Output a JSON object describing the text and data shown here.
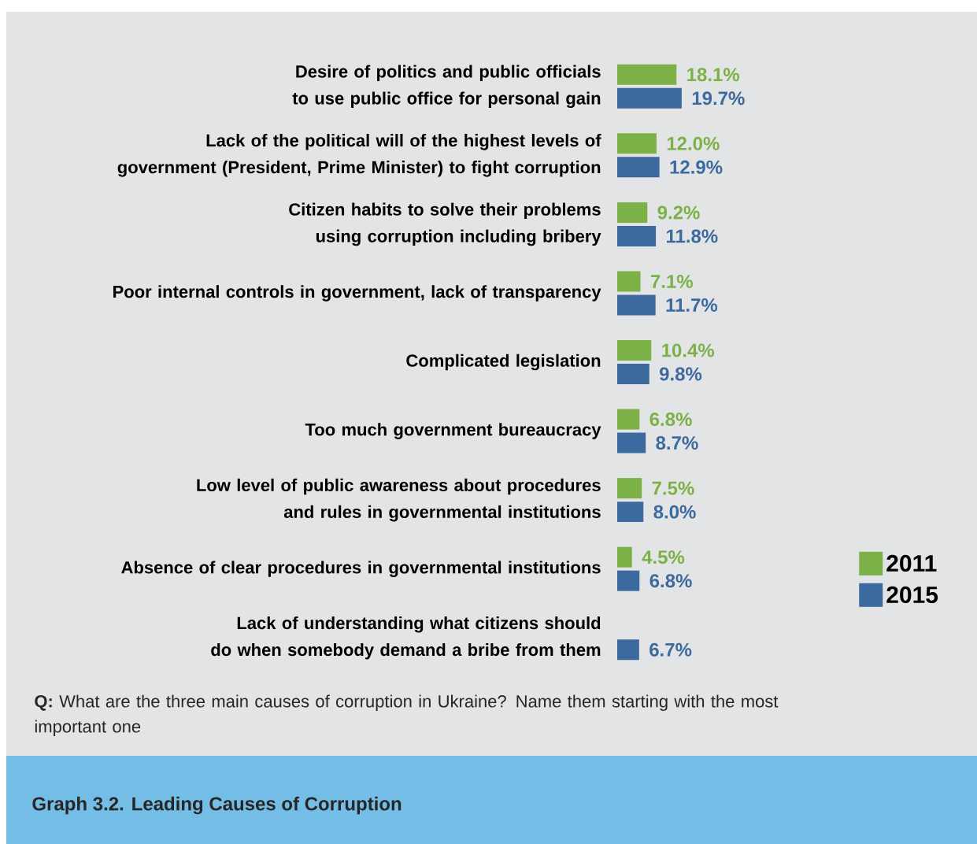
{
  "chart_data": {
    "type": "bar",
    "orientation": "horizontal",
    "title": "Graph 3.2. Leading Causes of Corruption",
    "categories": [
      "Desire of politics and public officials to use public office for personal gain",
      "Lack of the political will of the highest levels of government (President, Prime Minister) to fight corruption",
      "Citizen habits to solve their problems using corruption including bribery",
      "Poor internal controls in government, lack of transparency",
      "Complicated legislation",
      "Too much government bureaucracy",
      "Low level of public awareness about procedures and rules in governmental institutions",
      "Absence of clear procedures in governmental institutions",
      "Lack of understanding what citizens should do when somebody demand a bribe from them"
    ],
    "series": [
      {
        "name": "2011",
        "color": "#7cb147",
        "values": [
          18.1,
          12.0,
          9.2,
          7.1,
          10.4,
          6.8,
          7.5,
          4.5,
          null
        ],
        "value_labels": [
          "18.1%",
          "12.0%",
          "9.2%",
          "7.1%",
          "10.4%",
          "6.8%",
          "7.5%",
          "4.5%",
          null
        ]
      },
      {
        "name": "2015",
        "color": "#3d6a9e",
        "values": [
          19.7,
          12.9,
          11.8,
          11.7,
          9.8,
          8.7,
          8.0,
          6.8,
          6.7
        ],
        "value_labels": [
          "19.7%",
          "12.9%",
          "11.8%",
          "11.7%",
          "9.8%",
          "8.7%",
          "8.0%",
          "6.8%",
          "6.7%"
        ]
      }
    ],
    "legend": "bottom right",
    "annotations": [
      "**Q:** What are the three main causes of corruption in Ukraine? Name them starting with the most important one"
    ]
  }
}
